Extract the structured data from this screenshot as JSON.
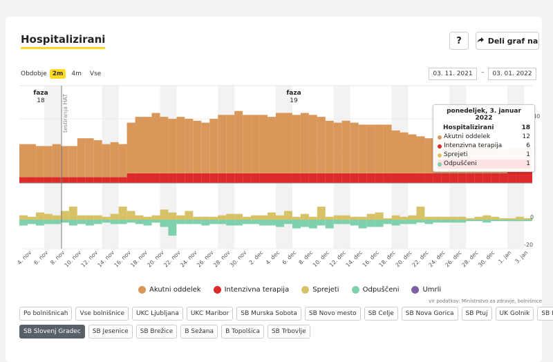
{
  "header": {
    "title": "Hospitalizirani",
    "help_label": "?",
    "share_label": "Deli graf na"
  },
  "period": {
    "label": "Obdobje",
    "options": [
      "2m",
      "4m",
      "Vse"
    ],
    "active": "2m",
    "from": "03. 11. 2021",
    "separator": "–",
    "to": "03. 01. 2022"
  },
  "annotations": {
    "faza18_label": "faza",
    "faza18_value": "18",
    "faza19_label": "faza",
    "faza19_value": "19",
    "hat_label": "testiranja HAT"
  },
  "tooltip": {
    "date": "ponedeljek, 3. januar 2022",
    "rows": [
      {
        "label": "Hospitalizirani",
        "value": "18"
      },
      {
        "label": "Akutni oddelek",
        "value": "12"
      },
      {
        "label": "Intenzivna terapija",
        "value": "6"
      },
      {
        "label": "Sprejeti",
        "value": "1"
      },
      {
        "label": "Odpuščeni",
        "value": "1"
      }
    ]
  },
  "legend": [
    {
      "label": "Akutni oddelek",
      "color": "#d9985a"
    },
    {
      "label": "Intenzivna terapija",
      "color": "#dd2a2a"
    },
    {
      "label": "Sprejeti",
      "color": "#d8c268"
    },
    {
      "label": "Odpuščeni",
      "color": "#7fd1ae"
    },
    {
      "label": "Umrli",
      "color": "#7e5fa6"
    }
  ],
  "source": "vir podatkov: Ministrstvo za zdravje, bolnišnice",
  "hospitals_row1": [
    "Po bolnišnicah",
    "Vse bolnišnice",
    "UKC Ljubljana",
    "UKC Maribor",
    "SB Murska Sobota",
    "SB Novo mesto",
    "SB Celje",
    "SB Nova Gorica",
    "SB Ptuj",
    "UK Golnik",
    "SB Izola"
  ],
  "hospitals_row2": [
    "SB Slovenj Gradec",
    "SB Jesenice",
    "SB Brežice",
    "B Sežana",
    "B Topolšica",
    "SB Trbovlje"
  ],
  "hospital_active": "SB Slovenj Gradec",
  "chart_data": [
    {
      "type": "bar",
      "stacked": true,
      "categories": [
        "2021-11-03",
        "2021-11-04",
        "2021-11-05",
        "2021-11-06",
        "2021-11-07",
        "2021-11-08",
        "2021-11-09",
        "2021-11-10",
        "2021-11-11",
        "2021-11-12",
        "2021-11-13",
        "2021-11-14",
        "2021-11-15",
        "2021-11-16",
        "2021-11-17",
        "2021-11-18",
        "2021-11-19",
        "2021-11-20",
        "2021-11-21",
        "2021-11-22",
        "2021-11-23",
        "2021-11-24",
        "2021-11-25",
        "2021-11-26",
        "2021-11-27",
        "2021-11-28",
        "2021-11-29",
        "2021-11-30",
        "2021-12-01",
        "2021-12-02",
        "2021-12-03",
        "2021-12-04",
        "2021-12-05",
        "2021-12-06",
        "2021-12-07",
        "2021-12-08",
        "2021-12-09",
        "2021-12-10",
        "2021-12-11",
        "2021-12-12",
        "2021-12-13",
        "2021-12-14",
        "2021-12-15",
        "2021-12-16",
        "2021-12-17",
        "2021-12-18",
        "2021-12-19",
        "2021-12-20",
        "2021-12-21",
        "2021-12-22",
        "2021-12-23",
        "2021-12-24",
        "2021-12-25",
        "2021-12-26",
        "2021-12-27",
        "2021-12-28",
        "2021-12-29",
        "2021-12-30",
        "2021-12-31",
        "2022-01-01",
        "2022-01-02",
        "2022-01-03"
      ],
      "x_tick_labels": [
        "4. nov",
        "6. nov",
        "8. nov",
        "10. nov",
        "12. nov",
        "14. nov",
        "16. nov",
        "18. nov",
        "20. nov",
        "22. nov",
        "24. nov",
        "26. nov",
        "28. nov",
        "30. nov",
        "2. dec",
        "4. dec",
        "6. dec",
        "8. dec",
        "10. dec",
        "12. dec",
        "14. dec",
        "16. dec",
        "18. dec",
        "20. dec",
        "22. dec",
        "24. dec",
        "26. dec",
        "28. dec",
        "30. dec",
        "1. jan",
        "3. jan"
      ],
      "series": [
        {
          "name": "Akutni oddelek",
          "color": "#d9985a",
          "values": [
            17,
            17,
            16,
            16,
            17,
            16,
            16,
            20,
            20,
            19,
            17,
            18,
            17,
            26,
            29,
            29,
            31,
            29,
            28,
            29,
            28,
            27,
            26,
            28,
            30,
            30,
            32,
            30,
            30,
            30,
            29,
            31,
            31,
            30,
            31,
            30,
            29,
            27,
            26,
            27,
            26,
            25,
            25,
            25,
            25,
            22,
            21,
            20,
            19,
            18,
            17,
            17,
            17,
            15,
            15,
            15,
            14,
            13,
            12,
            12,
            12,
            12
          ]
        },
        {
          "name": "Intenzivna terapija",
          "color": "#dd2a2a",
          "values": [
            3,
            3,
            3,
            3,
            3,
            3,
            3,
            3,
            3,
            3,
            3,
            3,
            3,
            5,
            5,
            5,
            5,
            5,
            5,
            5,
            5,
            5,
            5,
            5,
            5,
            5,
            5,
            5,
            5,
            5,
            5,
            5,
            5,
            5,
            5,
            5,
            5,
            5,
            5,
            5,
            5,
            5,
            5,
            5,
            5,
            5,
            5,
            5,
            5,
            5,
            5,
            5,
            5,
            5,
            5,
            5,
            5,
            5,
            5,
            6,
            6,
            6
          ]
        }
      ],
      "ylim": [
        0,
        50
      ],
      "yticks": [
        20,
        40
      ]
    },
    {
      "type": "bar",
      "categories_ref": "same as above",
      "series": [
        {
          "name": "Sprejeti",
          "color": "#d8c268",
          "values": [
            3,
            2,
            5,
            4,
            3,
            6,
            9,
            3,
            3,
            3,
            2,
            4,
            9,
            6,
            3,
            2,
            3,
            7,
            5,
            3,
            6,
            2,
            2,
            2,
            3,
            4,
            4,
            2,
            3,
            3,
            5,
            3,
            6,
            2,
            4,
            2,
            9,
            2,
            3,
            3,
            2,
            2,
            4,
            5,
            1,
            3,
            2,
            3,
            9,
            2,
            2,
            2,
            2,
            2,
            1,
            2,
            3,
            2,
            1,
            1,
            2,
            1
          ]
        },
        {
          "name": "Odpuščeni",
          "color": "#7fd1ae",
          "values": [
            -4,
            -3,
            -4,
            -3,
            -3,
            -2,
            -4,
            -3,
            -4,
            -3,
            -2,
            -3,
            -3,
            -2,
            -3,
            -4,
            -2,
            -5,
            -11,
            -3,
            -3,
            -3,
            -4,
            -3,
            -3,
            -4,
            -4,
            -3,
            -3,
            -4,
            -4,
            -5,
            -3,
            -6,
            -5,
            -6,
            -4,
            -6,
            -3,
            -3,
            -4,
            -6,
            -5,
            -5,
            -3,
            -4,
            -3,
            -3,
            -2,
            -3,
            -2,
            -2,
            -2,
            -2,
            -1,
            -1,
            -2,
            -1,
            -1,
            -1,
            -1,
            -1
          ]
        }
      ],
      "ylim": [
        -25,
        10
      ],
      "yticks": [
        0,
        -20
      ]
    }
  ]
}
